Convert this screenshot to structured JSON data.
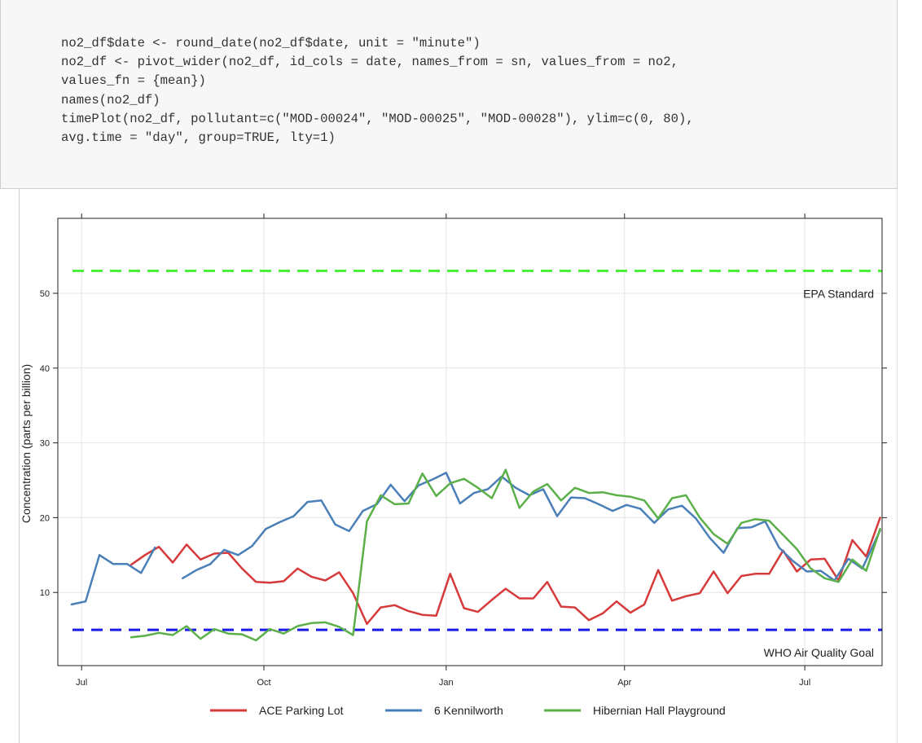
{
  "code": {
    "lines": [
      "no2_df$date <- round_date(no2_df$date, unit = \"minute\")",
      "no2_df <- pivot_wider(no2_df, id_cols = date, names_from = sn, values_from = no2,",
      "values_fn = {mean})",
      "names(no2_df)",
      "timePlot(no2_df, pollutant=c(\"MOD-00024\", \"MOD-00025\", \"MOD-00028\"), ylim=c(0, 80),",
      "avg.time = \"day\", group=TRUE, lty=1)"
    ]
  },
  "chart_data": {
    "type": "line",
    "title": "",
    "xlabel": "",
    "ylabel": "Concentration (parts per billion)",
    "x_ticks": [
      "Jul",
      "Oct",
      "Jan",
      "Apr",
      "Jul"
    ],
    "y_ticks": [
      10,
      20,
      30,
      40,
      50
    ],
    "ylim": [
      -0.1,
      60
    ],
    "grid": true,
    "legend_position": "bottom",
    "colors": {
      "ACE Parking Lot": "#d63a3a",
      "6 Kennilworth": "#4a7fb8",
      "Hibernian Hall Playground": "#5cb04a",
      "EPA Standard": "#4cf03c",
      "WHO Air Quality Goal": "#1a1ae6"
    },
    "reference_lines": [
      {
        "label": "EPA Standard",
        "value": 53
      },
      {
        "label": "WHO Air Quality Goal",
        "value": 5
      }
    ],
    "x_range": [
      "2022-06-19",
      "2023-08-09"
    ],
    "series": [
      {
        "name": "ACE Parking Lot",
        "points": [
          [
            "2022-07-26",
            13.7
          ],
          [
            "2022-08-02",
            15.0
          ],
          [
            "2022-08-09",
            16.1
          ],
          [
            "2022-08-16",
            14.0
          ],
          [
            "2022-08-23",
            16.4
          ],
          [
            "2022-08-30",
            14.4
          ],
          [
            "2022-09-06",
            15.2
          ],
          [
            "2022-09-13",
            15.3
          ],
          [
            "2022-09-20",
            13.2
          ],
          [
            "2022-09-27",
            11.4
          ],
          [
            "2022-10-04",
            11.3
          ],
          [
            "2022-10-11",
            11.5
          ],
          [
            "2022-10-18",
            13.2
          ],
          [
            "2022-10-25",
            12.1
          ],
          [
            "2022-11-01",
            11.6
          ],
          [
            "2022-11-08",
            12.7
          ],
          [
            "2022-11-15",
            9.9
          ],
          [
            "2022-11-22",
            5.8
          ],
          [
            "2022-11-29",
            8.0
          ],
          [
            "2022-12-06",
            8.3
          ],
          [
            "2022-12-13",
            7.5
          ],
          [
            "2022-12-20",
            7.0
          ],
          [
            "2022-12-27",
            6.9
          ],
          [
            "2023-01-03",
            12.5
          ],
          [
            "2023-01-10",
            7.9
          ],
          [
            "2023-01-17",
            7.4
          ],
          [
            "2023-01-24",
            9.0
          ],
          [
            "2023-01-31",
            10.5
          ],
          [
            "2023-02-07",
            9.2
          ],
          [
            "2023-02-14",
            9.2
          ],
          [
            "2023-02-21",
            11.4
          ],
          [
            "2023-02-28",
            8.1
          ],
          [
            "2023-03-07",
            8.0
          ],
          [
            "2023-03-14",
            6.3
          ],
          [
            "2023-03-21",
            7.2
          ],
          [
            "2023-03-28",
            8.8
          ],
          [
            "2023-04-04",
            7.3
          ],
          [
            "2023-04-11",
            8.4
          ],
          [
            "2023-04-18",
            13.0
          ],
          [
            "2023-04-25",
            8.9
          ],
          [
            "2023-05-02",
            9.5
          ],
          [
            "2023-05-09",
            9.9
          ],
          [
            "2023-05-16",
            12.8
          ],
          [
            "2023-05-23",
            9.9
          ],
          [
            "2023-05-30",
            12.2
          ],
          [
            "2023-06-06",
            12.5
          ],
          [
            "2023-06-13",
            12.5
          ],
          [
            "2023-06-20",
            15.6
          ],
          [
            "2023-06-27",
            12.8
          ],
          [
            "2023-07-04",
            14.4
          ],
          [
            "2023-07-11",
            14.5
          ],
          [
            "2023-07-18",
            11.6
          ],
          [
            "2023-07-25",
            17.0
          ],
          [
            "2023-08-01",
            14.8
          ],
          [
            "2023-08-08",
            20.0
          ]
        ]
      },
      {
        "name": "6 Kennilworth",
        "points": [
          [
            "2022-06-26",
            8.4
          ],
          [
            "2022-07-03",
            8.8
          ],
          [
            "2022-07-10",
            15.0
          ],
          [
            "2022-07-17",
            13.8
          ],
          [
            "2022-07-24",
            13.8
          ],
          [
            "2022-07-31",
            12.6
          ],
          [
            "2022-08-07",
            16.0
          ],
          null,
          [
            "2022-08-21",
            11.9
          ],
          [
            "2022-08-28",
            13.0
          ],
          [
            "2022-09-04",
            13.8
          ],
          [
            "2022-09-11",
            15.7
          ],
          [
            "2022-09-18",
            15.0
          ],
          [
            "2022-09-25",
            16.2
          ],
          [
            "2022-10-02",
            18.5
          ],
          [
            "2022-10-09",
            19.4
          ],
          [
            "2022-10-16",
            20.2
          ],
          [
            "2022-10-23",
            22.1
          ],
          [
            "2022-10-30",
            22.3
          ],
          [
            "2022-11-06",
            19.1
          ],
          [
            "2022-11-13",
            18.2
          ],
          [
            "2022-11-20",
            20.9
          ],
          [
            "2022-11-27",
            21.8
          ],
          [
            "2022-12-04",
            24.4
          ],
          [
            "2022-12-11",
            22.2
          ],
          [
            "2022-12-18",
            24.3
          ],
          [
            "2022-12-25",
            25.1
          ],
          [
            "2023-01-01",
            26.0
          ],
          [
            "2023-01-08",
            21.9
          ],
          [
            "2023-01-15",
            23.3
          ],
          [
            "2023-01-22",
            23.8
          ],
          [
            "2023-01-29",
            25.5
          ],
          [
            "2023-02-05",
            24.0
          ],
          [
            "2023-02-12",
            23.0
          ],
          [
            "2023-02-19",
            23.8
          ],
          [
            "2023-02-26",
            20.2
          ],
          [
            "2023-03-05",
            22.7
          ],
          [
            "2023-03-12",
            22.6
          ],
          [
            "2023-03-19",
            21.8
          ],
          [
            "2023-03-26",
            20.9
          ],
          [
            "2023-04-02",
            21.7
          ],
          [
            "2023-04-09",
            21.2
          ],
          [
            "2023-04-16",
            19.3
          ],
          [
            "2023-04-23",
            21.1
          ],
          [
            "2023-04-30",
            21.6
          ],
          [
            "2023-05-07",
            19.9
          ],
          [
            "2023-05-14",
            17.3
          ],
          [
            "2023-05-21",
            15.3
          ],
          [
            "2023-05-28",
            18.6
          ],
          [
            "2023-06-04",
            18.7
          ],
          [
            "2023-06-11",
            19.5
          ],
          [
            "2023-06-18",
            16.0
          ],
          [
            "2023-06-25",
            14.2
          ],
          [
            "2023-07-02",
            12.8
          ],
          [
            "2023-07-09",
            12.9
          ],
          [
            "2023-07-16",
            11.6
          ],
          [
            "2023-07-23",
            14.5
          ],
          [
            "2023-07-30",
            13.2
          ],
          [
            "2023-08-08",
            18.3
          ]
        ]
      },
      {
        "name": "Hibernian Hall Playground",
        "points": [
          [
            "2022-07-26",
            4.0
          ],
          [
            "2022-08-02",
            4.2
          ],
          [
            "2022-08-09",
            4.6
          ],
          [
            "2022-08-16",
            4.3
          ],
          [
            "2022-08-23",
            5.5
          ],
          [
            "2022-08-30",
            3.8
          ],
          [
            "2022-09-06",
            5.1
          ],
          [
            "2022-09-13",
            4.5
          ],
          [
            "2022-09-20",
            4.4
          ],
          [
            "2022-09-27",
            3.6
          ],
          [
            "2022-10-04",
            5.1
          ],
          [
            "2022-10-11",
            4.5
          ],
          [
            "2022-10-18",
            5.5
          ],
          [
            "2022-10-25",
            5.9
          ],
          [
            "2022-11-01",
            6.0
          ],
          [
            "2022-11-08",
            5.4
          ],
          [
            "2022-11-15",
            4.3
          ],
          [
            "2022-11-22",
            19.5
          ],
          [
            "2022-11-29",
            23.0
          ],
          [
            "2022-12-06",
            21.8
          ],
          [
            "2022-12-13",
            21.9
          ],
          [
            "2022-12-20",
            25.9
          ],
          [
            "2022-12-27",
            22.9
          ],
          [
            "2023-01-03",
            24.6
          ],
          [
            "2023-01-10",
            25.2
          ],
          [
            "2023-01-17",
            24.0
          ],
          [
            "2023-01-24",
            22.6
          ],
          [
            "2023-01-31",
            26.4
          ],
          [
            "2023-02-07",
            21.3
          ],
          [
            "2023-02-14",
            23.5
          ],
          [
            "2023-02-21",
            24.5
          ],
          [
            "2023-02-28",
            22.3
          ],
          [
            "2023-03-07",
            24.0
          ],
          [
            "2023-03-14",
            23.3
          ],
          [
            "2023-03-21",
            23.4
          ],
          [
            "2023-03-28",
            23.0
          ],
          [
            "2023-04-04",
            22.8
          ],
          [
            "2023-04-11",
            22.3
          ],
          [
            "2023-04-18",
            19.9
          ],
          [
            "2023-04-25",
            22.6
          ],
          [
            "2023-05-02",
            23.0
          ],
          [
            "2023-05-09",
            20.0
          ],
          [
            "2023-05-16",
            17.8
          ],
          [
            "2023-05-23",
            16.5
          ],
          [
            "2023-05-30",
            19.3
          ],
          [
            "2023-06-06",
            19.8
          ],
          [
            "2023-06-13",
            19.6
          ],
          [
            "2023-06-20",
            17.7
          ],
          [
            "2023-06-27",
            15.8
          ],
          [
            "2023-07-04",
            13.2
          ],
          [
            "2023-07-11",
            11.9
          ],
          [
            "2023-07-18",
            11.4
          ],
          [
            "2023-07-25",
            14.4
          ],
          [
            "2023-08-01",
            12.9
          ],
          [
            "2023-08-08",
            18.5
          ]
        ]
      }
    ]
  }
}
